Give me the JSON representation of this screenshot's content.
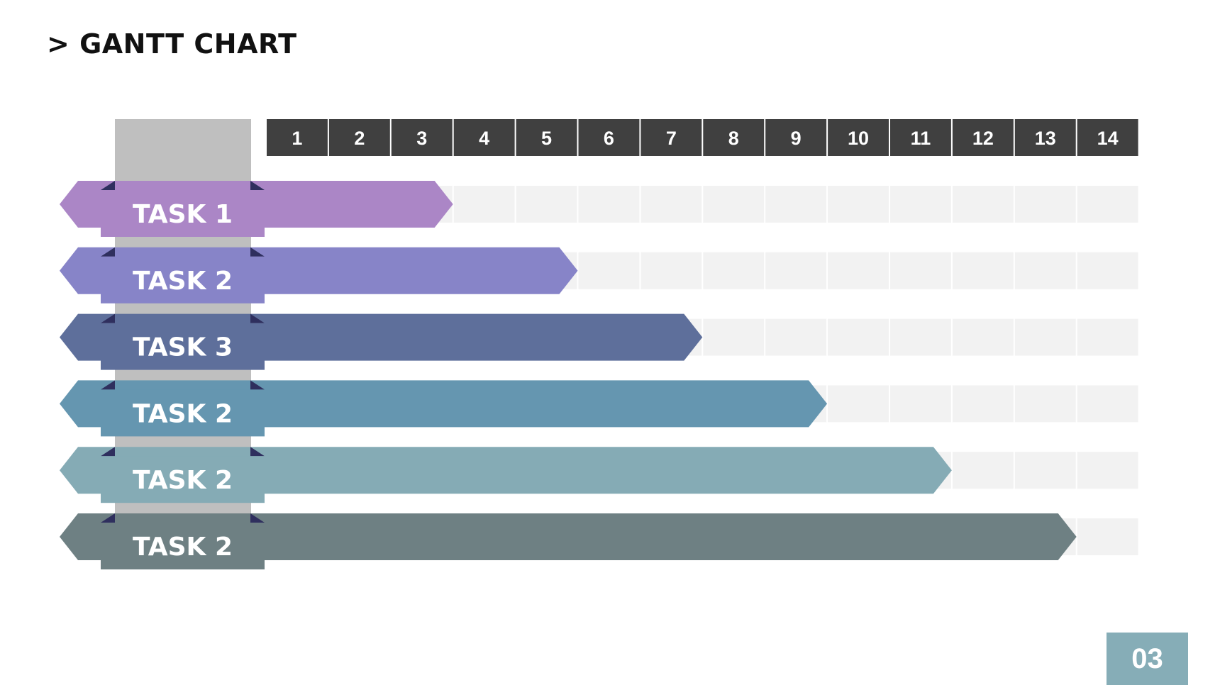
{
  "slide": {
    "title": "> GANTT CHART",
    "page_number": "03"
  },
  "colors": {
    "header_bg": "#404040",
    "header_text": "#ffffff",
    "track_bg": "#f2f2f2",
    "label_column_bg": "#bfbfbf",
    "fold_shadow": "#2f2f5e",
    "label_text": "#ffffff",
    "page_badge_bg": "#86adb7"
  },
  "chart_data": {
    "type": "bar",
    "orientation": "horizontal",
    "variant": "gantt",
    "x_ticks": [
      "1",
      "2",
      "3",
      "4",
      "5",
      "6",
      "7",
      "8",
      "9",
      "10",
      "11",
      "12",
      "13",
      "14"
    ],
    "xlim": [
      0,
      14
    ],
    "grid": true,
    "tasks": [
      {
        "label": "TASK 1",
        "start": 0,
        "end": 3,
        "color": "#ab86c6"
      },
      {
        "label": "TASK 2",
        "start": 0,
        "end": 5,
        "color": "#8784c8"
      },
      {
        "label": "TASK 3",
        "start": 0,
        "end": 7,
        "color": "#5e6f9b"
      },
      {
        "label": "TASK 2",
        "start": 0,
        "end": 9,
        "color": "#6596b0"
      },
      {
        "label": "TASK 2",
        "start": 0,
        "end": 11,
        "color": "#85abb5"
      },
      {
        "label": "TASK 2",
        "start": 0,
        "end": 13,
        "color": "#6e8083"
      }
    ]
  }
}
